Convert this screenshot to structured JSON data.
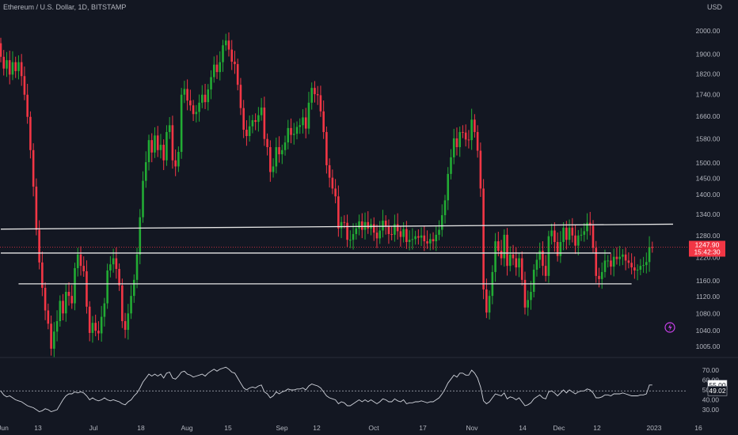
{
  "chart_data": {
    "type": "candlestick",
    "title": "Ethereum / U.S. Dollar, 1D, BITSTAMP",
    "y_unit": "USD",
    "price_axis": {
      "scale": "log",
      "ticks": [
        "2000.00",
        "1900.00",
        "1820.00",
        "1740.00",
        "1660.00",
        "1580.00",
        "1500.00",
        "1450.00",
        "1400.00",
        "1340.00",
        "1280.00",
        "1220.00",
        "1160.00",
        "1120.00",
        "1080.00",
        "1040.00",
        "1005.00"
      ]
    },
    "x_ticks": [
      "Jun",
      "13",
      "Jul",
      "18",
      "Aug",
      "15",
      "Sep",
      "12",
      "Oct",
      "17",
      "Nov",
      "14",
      "Dec",
      "12",
      "2023",
      "16"
    ],
    "current_price": {
      "value": "1247.90",
      "countdown": "15:42:30",
      "color": "#f23645"
    },
    "support_resistance_lines": [
      {
        "from": [
          0,
          1298
        ],
        "to": [
          227,
          1312
        ]
      },
      {
        "from": [
          0,
          1232
        ],
        "to": [
          206,
          1232
        ]
      },
      {
        "from": [
          6,
          1152
        ],
        "to": [
          213,
          1152
        ]
      }
    ],
    "candle_colors": {
      "up": "#22ab34",
      "down": "#f23645"
    },
    "closes": [
      1890,
      1842,
      1876,
      1818,
      1868,
      1832,
      1868,
      1812,
      1740,
      1658,
      1542,
      1424,
      1296,
      1207,
      1142,
      1087,
      1056,
      1000,
      1038,
      1062,
      1110,
      1080,
      1132,
      1122,
      1104,
      1192,
      1228,
      1198,
      1184,
      1096,
      1035,
      1058,
      1040,
      1034,
      1072,
      1104,
      1186,
      1202,
      1218,
      1190,
      1148,
      1062,
      1042,
      1080,
      1122,
      1162,
      1228,
      1332,
      1442,
      1502,
      1576,
      1534,
      1592,
      1542,
      1560,
      1508,
      1604,
      1628,
      1508,
      1488,
      1536,
      1740,
      1762,
      1718,
      1700,
      1668,
      1676,
      1710,
      1740,
      1712,
      1760,
      1808,
      1858,
      1828,
      1868,
      1938,
      1958,
      1920,
      1870,
      1860,
      1778,
      1690,
      1612,
      1590,
      1624,
      1646,
      1640,
      1664,
      1692,
      1580,
      1552,
      1470,
      1488,
      1552,
      1528,
      1542,
      1568,
      1618,
      1594,
      1598,
      1622,
      1628,
      1656,
      1616,
      1710,
      1766,
      1742,
      1738,
      1678,
      1604,
      1492,
      1452,
      1418,
      1394,
      1300,
      1318,
      1316,
      1268,
      1268,
      1284,
      1300,
      1320,
      1296,
      1318,
      1300,
      1312,
      1288,
      1272,
      1294,
      1322,
      1306,
      1284,
      1282,
      1312,
      1292,
      1276,
      1298,
      1262,
      1268,
      1270,
      1278,
      1274,
      1280,
      1264,
      1258,
      1270,
      1264,
      1282,
      1296,
      1338,
      1382,
      1464,
      1518,
      1582,
      1552,
      1604,
      1602,
      1578,
      1576,
      1648,
      1604,
      1540,
      1418,
      1138,
      1082,
      1122,
      1182,
      1264,
      1238,
      1218,
      1282,
      1198,
      1228,
      1218,
      1194,
      1218,
      1162,
      1094,
      1112,
      1132,
      1188,
      1214,
      1238,
      1198,
      1172,
      1278,
      1294,
      1262,
      1224,
      1262,
      1302,
      1268,
      1302,
      1280,
      1252,
      1280,
      1282,
      1292,
      1316,
      1308,
      1246,
      1172,
      1164,
      1182,
      1212,
      1212,
      1196,
      1222,
      1216,
      1222,
      1228,
      1212,
      1206,
      1194,
      1186,
      1188,
      1198,
      1200,
      1208,
      1248,
      1247.9
    ],
    "oscillator": {
      "type": "line",
      "y_ticks": [
        "70.00",
        "60.00",
        "50.00",
        "40.00",
        "30.00"
      ],
      "last_value": "55.00",
      "reference_level": "49.02",
      "values": [
        49,
        45,
        43,
        44,
        42,
        40,
        39,
        38,
        36,
        34,
        33,
        32,
        30,
        28,
        29,
        31,
        30,
        28,
        29,
        30,
        35,
        40,
        44,
        46,
        46,
        48,
        47,
        48,
        47,
        44,
        40,
        42,
        40,
        39,
        40,
        42,
        40,
        39,
        40,
        39,
        38,
        36,
        35,
        38,
        40,
        44,
        47,
        52,
        58,
        62,
        66,
        64,
        66,
        64,
        66,
        62,
        67,
        68,
        62,
        61,
        64,
        68,
        69,
        66,
        65,
        63,
        64,
        65,
        66,
        64,
        67,
        69,
        71,
        69,
        71,
        72,
        73,
        71,
        68,
        67,
        62,
        57,
        52,
        50,
        52,
        53,
        52,
        54,
        55,
        48,
        46,
        42,
        44,
        48,
        46,
        48,
        49,
        51,
        50,
        50,
        51,
        51,
        52,
        50,
        54,
        56,
        55,
        54,
        52,
        48,
        44,
        42,
        41,
        40,
        36,
        38,
        37,
        34,
        34,
        36,
        38,
        40,
        38,
        40,
        38,
        40,
        38,
        36,
        38,
        41,
        40,
        38,
        38,
        41,
        39,
        38,
        40,
        36,
        37,
        37,
        38,
        38,
        39,
        38,
        37,
        38,
        38,
        40,
        42,
        46,
        51,
        57,
        61,
        65,
        63,
        67,
        67,
        65,
        65,
        70,
        67,
        62,
        53,
        39,
        36,
        38,
        42,
        46,
        45,
        44,
        47,
        41,
        43,
        42,
        40,
        42,
        38,
        34,
        35,
        37,
        41,
        43,
        45,
        42,
        41,
        48,
        49,
        47,
        44,
        47,
        50,
        47,
        50,
        48,
        46,
        48,
        49,
        49,
        51,
        50,
        47,
        42,
        42,
        43,
        45,
        45,
        44,
        46,
        46,
        46,
        47,
        46,
        45,
        44,
        44,
        44,
        45,
        45,
        46,
        55,
        55
      ]
    }
  }
}
